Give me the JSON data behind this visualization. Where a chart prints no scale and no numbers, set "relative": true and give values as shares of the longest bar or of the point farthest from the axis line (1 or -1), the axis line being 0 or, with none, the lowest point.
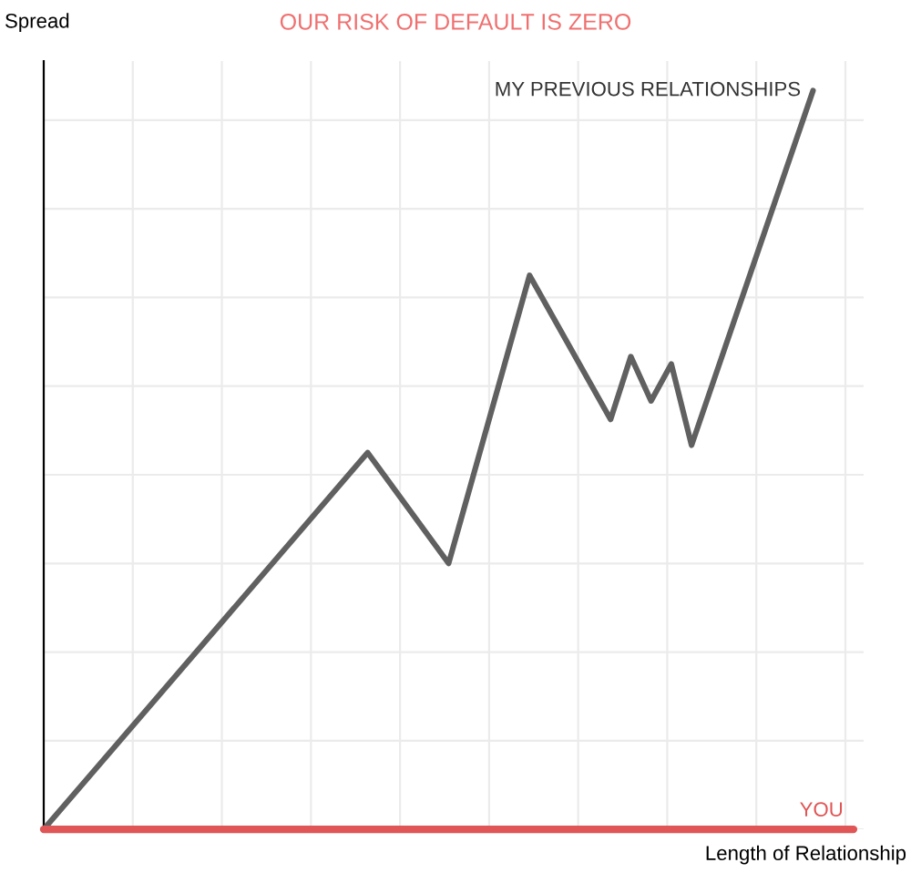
{
  "chart_data": {
    "type": "line",
    "title": "OUR RISK OF DEFAULT IS ZERO",
    "xlabel": "Length of Relationship",
    "ylabel": "Spread",
    "relative": true,
    "grid": true,
    "legend": false,
    "marker": "none",
    "line_style": "solid",
    "categories": [
      null,
      null,
      null,
      null,
      null,
      null,
      null,
      null,
      null,
      null,
      null,
      null,
      null,
      null,
      null,
      null,
      null,
      null,
      null,
      null,
      null,
      null,
      null,
      null,
      null,
      null,
      null,
      null,
      null,
      null,
      null,
      null,
      null,
      null,
      null,
      null,
      null,
      null,
      null,
      null,
      null
    ],
    "series": [
      {
        "name": "MY PREVIOUS RELATIONSHIPS",
        "color": "#606060",
        "values": [
          0,
          null,
          null,
          null,
          null,
          null,
          null,
          null,
          null,
          null,
          null,
          null,
          null,
          null,
          null,
          null,
          0.51,
          null,
          null,
          null,
          0.36,
          null,
          null,
          null,
          0.75,
          null,
          null,
          null,
          0.555,
          0.64,
          0.58,
          0.63,
          0.52,
          null,
          null,
          null,
          null,
          null,
          1,
          null,
          null
        ]
      },
      {
        "name": "YOU",
        "color": "#e05555",
        "values": [
          0,
          null,
          null,
          null,
          null,
          null,
          null,
          null,
          null,
          null,
          null,
          null,
          null,
          null,
          null,
          null,
          null,
          null,
          null,
          null,
          null,
          null,
          null,
          null,
          null,
          null,
          null,
          null,
          null,
          null,
          null,
          null,
          null,
          null,
          null,
          null,
          null,
          null,
          null,
          null,
          0
        ]
      }
    ]
  }
}
